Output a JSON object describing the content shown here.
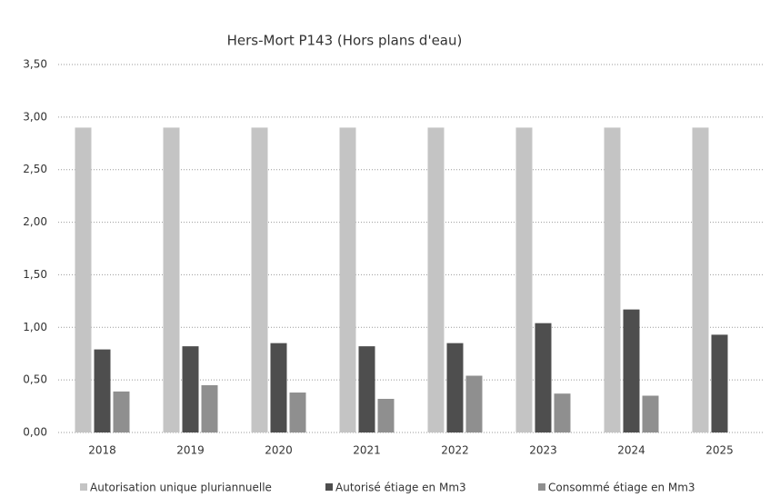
{
  "chart_data": {
    "type": "bar",
    "title": "Hers-Mort P143 (Hors plans d'eau)",
    "categories": [
      "2018",
      "2019",
      "2020",
      "2021",
      "2022",
      "2023",
      "2024",
      "2025"
    ],
    "series": [
      {
        "name": "Autorisation unique pluriannuelle",
        "color": "#c4c4c4",
        "values": [
          2.9,
          2.9,
          2.9,
          2.9,
          2.9,
          2.9,
          2.9,
          2.9
        ]
      },
      {
        "name": "Autorisé étiage en Mm3",
        "color": "#4e4e4e",
        "values": [
          0.79,
          0.82,
          0.85,
          0.82,
          0.85,
          1.04,
          1.17,
          0.93
        ]
      },
      {
        "name": "Consommé étiage en Mm3",
        "color": "#8f8f8f",
        "values": [
          0.39,
          0.45,
          0.38,
          0.32,
          0.54,
          0.37,
          0.35,
          null
        ]
      }
    ],
    "ylim": [
      0,
      3.5
    ],
    "yticks": [
      {
        "value": 0,
        "label": "0,00"
      },
      {
        "value": 0.5,
        "label": "0,50"
      },
      {
        "value": 1,
        "label": "1,00"
      },
      {
        "value": 1.5,
        "label": "1,50"
      },
      {
        "value": 2,
        "label": "2,00"
      },
      {
        "value": 2.5,
        "label": "2,50"
      },
      {
        "value": 3,
        "label": "3,00"
      },
      {
        "value": 3.5,
        "label": "3,50"
      }
    ],
    "grid": true,
    "legend": "bottom"
  }
}
